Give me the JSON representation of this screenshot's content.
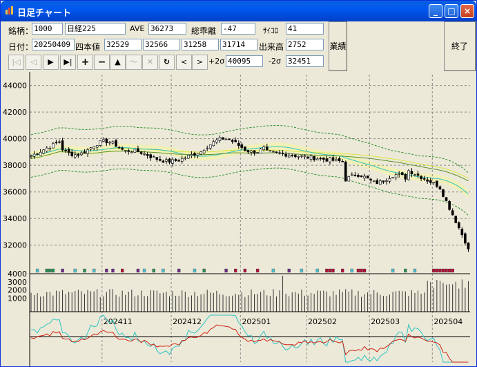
{
  "window": {
    "title": "日足チャート"
  },
  "row1": {
    "code_label": "銘柄：",
    "code": "1000",
    "name": "日経225",
    "ave_label": "AVE",
    "ave": "36273",
    "deviation_label": "総乖離",
    "deviation": "-47",
    "dice_label": "ｻｲｺﾛ",
    "dice": "41"
  },
  "row2": {
    "date_label": "日付：",
    "date": "20250409",
    "ohlc_label": "四本値",
    "open": "32529",
    "high": "32566",
    "low": "31258",
    "close": "31714",
    "volume_label": "出来高",
    "volume": "2752"
  },
  "row3": {
    "plus2s_label": "+2σ",
    "plus2s": "40095",
    "minus2s_label": "-2σ",
    "minus2s": "32451"
  },
  "buttons": {
    "earnings": "業績",
    "exit": "終了"
  },
  "toolbar": {
    "first": "|◁",
    "prev": "◁",
    "play": "▶",
    "last": "▶|",
    "zoom_in": "+",
    "zoom_out": "−",
    "up": "▲",
    "trend": "〜",
    "cancel": "✕",
    "refresh": "↻",
    "left": "<",
    "right": ">"
  },
  "colors": {
    "ma_short": "#2ec4c4",
    "ma_long": "#5a8f2a",
    "band": "#2a8f2a",
    "band_fill": "#f5f2a8",
    "up_marker": "#2a8f5a",
    "down_marker": "#b0103a",
    "cyan_marker": "#4fbfd0",
    "purple_marker": "#6a2a8a"
  },
  "chart_data": {
    "type": "candlestick",
    "y_ticks": [
      "44000",
      "42000",
      "40000",
      "38000",
      "36000",
      "34000",
      "32000"
    ],
    "ylim": [
      31000,
      44500
    ],
    "volume_ticks": [
      "4000",
      "3000",
      "2000",
      "1000"
    ],
    "x_labels": [
      "202411",
      "202412",
      "202501",
      "202502",
      "202503",
      "202504"
    ],
    "x_label_index": [
      23,
      45,
      67,
      88,
      108,
      128
    ],
    "last_close": 31714
  }
}
